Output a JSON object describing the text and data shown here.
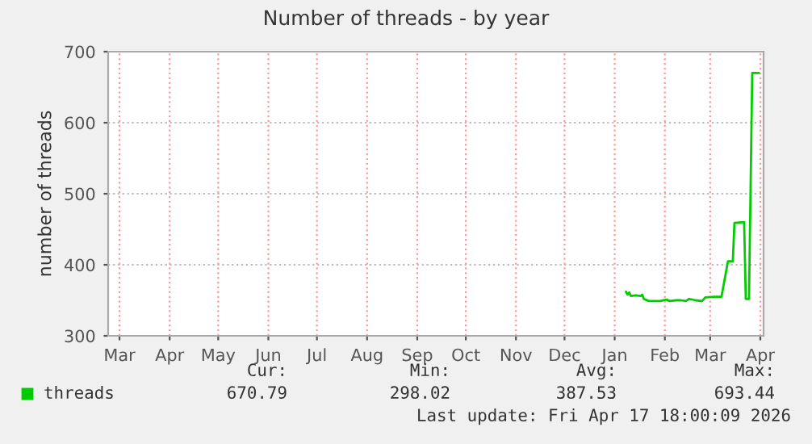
{
  "chart_data": {
    "type": "line",
    "title": "Number of threads - by year",
    "ylabel": "number of threads",
    "x": [
      "2026-01-22",
      "2026-01-23",
      "2026-01-24",
      "2026-01-25",
      "2026-01-28",
      "2026-01-31",
      "2026-02-01",
      "2026-02-02",
      "2026-02-05",
      "2026-02-12",
      "2026-02-16",
      "2026-02-18",
      "2026-02-22",
      "2026-02-25",
      "2026-02-28",
      "2026-03-02",
      "2026-03-06",
      "2026-03-10",
      "2026-03-12",
      "2026-03-18",
      "2026-03-22",
      "2026-03-26",
      "2026-03-29",
      "2026-03-30",
      "2026-04-05",
      "2026-04-06",
      "2026-04-08",
      "2026-04-10",
      "2026-04-14"
    ],
    "series": [
      {
        "name": "threads",
        "color": "#00cc00",
        "values": [
          362,
          358,
          361,
          356,
          357,
          356,
          358,
          352,
          349,
          349,
          351,
          349,
          350,
          350,
          349,
          352,
          350,
          349,
          354,
          355,
          355,
          405,
          405,
          459,
          460,
          352,
          352,
          670,
          670
        ]
      }
    ],
    "xlim": [
      "2025-03-08",
      "2026-04-17"
    ],
    "xticks": [
      {
        "value": "2025-03-15",
        "label": "Mar"
      },
      {
        "value": "2025-04-15",
        "label": "Apr"
      },
      {
        "value": "2025-05-15",
        "label": "May"
      },
      {
        "value": "2025-06-15",
        "label": "Jun"
      },
      {
        "value": "2025-07-15",
        "label": "Jul"
      },
      {
        "value": "2025-08-15",
        "label": "Aug"
      },
      {
        "value": "2025-09-15",
        "label": "Sep"
      },
      {
        "value": "2025-10-15",
        "label": "Oct"
      },
      {
        "value": "2025-11-15",
        "label": "Nov"
      },
      {
        "value": "2025-12-15",
        "label": "Dec"
      },
      {
        "value": "2026-01-15",
        "label": "Jan"
      },
      {
        "value": "2026-02-15",
        "label": "Feb"
      },
      {
        "value": "2026-03-15",
        "label": "Mar"
      },
      {
        "value": "2026-04-15",
        "label": "Apr"
      }
    ],
    "ylim": [
      300,
      700
    ],
    "yticks": [
      300,
      400,
      500,
      600,
      700
    ],
    "grid": true,
    "legend": "bottom",
    "marker": "none",
    "line_style": "solid",
    "annotations": [
      "Cur:",
      "Min:",
      "Avg:",
      "Max:",
      "670.79",
      "298.02",
      "387.53",
      "693.44",
      "Last update: Fri Apr 17 18:00:09 2026"
    ]
  }
}
